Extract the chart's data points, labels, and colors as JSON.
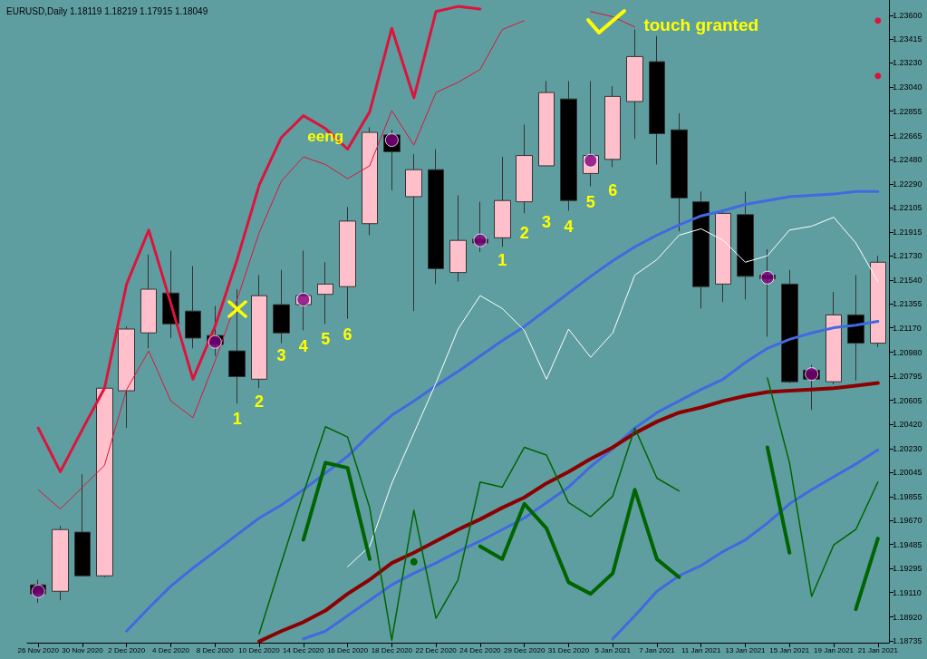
{
  "chart_data": {
    "type": "candlestick",
    "title": "EURUSD,Daily 1.18119 1.18219 1.17915 1.18049",
    "categories": [
      "26 Nov 2020",
      null,
      "30 Nov 2020",
      null,
      "2 Dec 2020",
      null,
      "4 Dec 2020",
      null,
      "8 Dec 2020",
      null,
      "10 Dec 2020",
      null,
      "14 Dec 2020",
      null,
      "16 Dec 2020",
      null,
      "18 Dec 2020",
      null,
      "22 Dec 2020",
      null,
      "24 Dec 2020",
      null,
      "29 Dec 2020",
      null,
      "31 Dec 2020",
      null,
      "5 Jan 2021",
      null,
      "7 Jan 2021",
      null,
      "11 Jan 2021",
      null,
      "13 Jan 2021",
      null,
      "15 Jan 2021",
      null,
      "19 Jan 2021",
      null,
      "21 Jan 2021"
    ],
    "ohlc": [
      [
        1.1917,
        1.1921,
        1.1903,
        1.191
      ],
      [
        1.1912,
        1.1963,
        1.1905,
        1.196
      ],
      [
        1.1958,
        1.2003,
        1.1924,
        1.1924
      ],
      [
        1.1924,
        1.207,
        1.1923,
        1.207
      ],
      [
        1.2068,
        1.2118,
        1.2039,
        1.2116
      ],
      [
        1.2113,
        1.2174,
        1.2101,
        1.2147
      ],
      [
        1.2144,
        1.2177,
        1.2109,
        1.212
      ],
      [
        1.213,
        1.2165,
        1.2101,
        1.2109
      ],
      [
        1.2111,
        1.2134,
        1.2095,
        1.2104
      ],
      [
        1.2099,
        1.2147,
        1.2058,
        1.2079
      ],
      [
        1.2077,
        1.2158,
        1.207,
        1.2142
      ],
      [
        1.2135,
        1.2162,
        1.2105,
        1.2113
      ],
      [
        1.2135,
        1.2177,
        1.2115,
        1.2142
      ],
      [
        1.2143,
        1.2168,
        1.212,
        1.2151
      ],
      [
        1.2149,
        1.2211,
        1.2124,
        1.22
      ],
      [
        1.2198,
        1.2273,
        1.2189,
        1.2269
      ],
      [
        1.2267,
        1.2271,
        1.2224,
        1.2254
      ],
      [
        1.2219,
        1.2252,
        1.213,
        1.224
      ],
      [
        1.224,
        1.2256,
        1.2151,
        1.2163
      ],
      [
        1.216,
        1.222,
        1.2153,
        1.2185
      ],
      [
        1.2186,
        1.2215,
        1.2176,
        1.2183
      ],
      [
        1.2187,
        1.225,
        1.218,
        1.2216
      ],
      [
        1.2215,
        1.2275,
        1.2206,
        1.2251
      ],
      [
        1.2243,
        1.2309,
        1.2243,
        1.23
      ],
      [
        1.2295,
        1.2309,
        1.2208,
        1.2216
      ],
      [
        1.2237,
        1.2309,
        1.2227,
        1.2251
      ],
      [
        1.2248,
        1.2305,
        1.2242,
        1.2297
      ],
      [
        1.2293,
        1.2349,
        1.2264,
        1.2328
      ],
      [
        1.2324,
        1.2344,
        1.2244,
        1.2268
      ],
      [
        1.2271,
        1.2284,
        1.2192,
        1.2218
      ],
      [
        1.2215,
        1.2223,
        1.2132,
        1.2149
      ],
      [
        1.2151,
        1.2209,
        1.2137,
        1.2206
      ],
      [
        1.2205,
        1.2223,
        1.2139,
        1.2157
      ],
      [
        1.2158,
        1.2178,
        1.211,
        1.2155
      ],
      [
        1.2151,
        1.2162,
        1.2074,
        1.2075
      ],
      [
        1.2084,
        1.2088,
        1.2053,
        1.2077
      ],
      [
        1.2075,
        1.2145,
        1.2073,
        1.2127
      ],
      [
        1.2127,
        1.2158,
        1.2076,
        1.2105
      ],
      [
        1.2105,
        1.2173,
        1.2102,
        1.2168
      ]
    ],
    "colors": [
      "#000000",
      "#ffc0cb",
      "#000000",
      "#ffc0cb",
      "#ffc0cb",
      "#ffc0cb",
      "#000000",
      "#000000",
      "#000000",
      "#000000",
      "#ffc0cb",
      "#000000",
      "#ffc0cb",
      "#ffc0cb",
      "#ffc0cb",
      "#ffc0cb",
      "#000000",
      "#ffc0cb",
      "#000000",
      "#ffc0cb",
      "#000000",
      "#ffc0cb",
      "#ffc0cb",
      "#ffc0cb",
      "#000000",
      "#ffc0cb",
      "#ffc0cb",
      "#ffc0cb",
      "#000000",
      "#000000",
      "#000000",
      "#ffc0cb",
      "#000000",
      "#000000",
      "#000000",
      "#000000",
      "#ffc0cb",
      "#000000",
      "#ffc0cb"
    ],
    "series": [
      {
        "type": "line",
        "color": "#dc143c",
        "values": [
          1.2039,
          1.2005,
          1.2038,
          1.207,
          1.2151,
          1.2193,
          1.2136,
          1.2077,
          1.2118,
          1.217,
          1.2228,
          1.2265,
          1.2282,
          1.2272,
          1.2256,
          1.2285,
          1.235,
          1.2296,
          1.2363,
          1.2367,
          1.2365,
          null,
          null,
          null,
          null,
          null,
          null,
          null,
          null,
          null,
          null,
          null,
          null,
          null,
          null,
          null,
          null,
          null,
          1.2356
        ]
      },
      {
        "type": "line",
        "color": "#dc143c",
        "values": [
          1.1991,
          1.1976,
          1.1993,
          1.201,
          1.2069,
          1.2099,
          1.206,
          1.2047,
          1.2091,
          1.2139,
          1.2191,
          1.2231,
          1.225,
          1.2244,
          1.2233,
          1.2243,
          1.2286,
          1.2259,
          1.23,
          1.2308,
          1.2318,
          1.2349,
          1.2356,
          null,
          null,
          null,
          null,
          null,
          null,
          null,
          null,
          null,
          null,
          null,
          null,
          null,
          null,
          null,
          1.2313
        ]
      },
      {
        "type": "line",
        "color": "#dc143c",
        "values": [
          null,
          null,
          null,
          null,
          null,
          null,
          null,
          null,
          null,
          null,
          null,
          null,
          null,
          null,
          null,
          null,
          null,
          null,
          null,
          null,
          null,
          null,
          null,
          null,
          null,
          1.2363,
          1.2359,
          1.2351,
          null,
          null,
          null,
          null,
          null,
          null,
          null,
          null,
          null,
          null,
          null
        ]
      },
      {
        "type": "line",
        "color": "#4169e1",
        "values": [
          null,
          null,
          null,
          null,
          1.1881,
          1.1899,
          1.1916,
          1.193,
          1.1943,
          1.1956,
          1.1969,
          1.1979,
          1.1991,
          1.2004,
          1.2017,
          1.2034,
          1.2049,
          1.206,
          1.2072,
          1.2083,
          1.2095,
          1.2107,
          1.2118,
          1.2131,
          1.2144,
          1.2157,
          1.2169,
          1.218,
          1.2189,
          1.2197,
          1.2204,
          1.2208,
          1.2213,
          1.2216,
          1.2219,
          1.222,
          1.2221,
          1.2223,
          1.2223
        ]
      },
      {
        "type": "line",
        "color": "#4169e1",
        "values": [
          null,
          null,
          null,
          null,
          null,
          null,
          null,
          null,
          null,
          null,
          null,
          null,
          1.1875,
          1.1881,
          1.1893,
          1.1905,
          1.1917,
          1.1926,
          1.1934,
          1.1943,
          1.1951,
          1.196,
          1.1969,
          1.1981,
          1.1993,
          1.2009,
          1.2023,
          1.2039,
          1.2051,
          1.206,
          1.2069,
          1.2077,
          1.209,
          1.2101,
          1.2108,
          1.2113,
          1.2117,
          1.2119,
          1.2122
        ]
      },
      {
        "type": "line",
        "color": "#4169e1",
        "values": [
          null,
          null,
          null,
          null,
          null,
          null,
          null,
          null,
          null,
          null,
          null,
          null,
          null,
          null,
          null,
          null,
          null,
          null,
          null,
          null,
          null,
          null,
          null,
          null,
          null,
          null,
          1.1875,
          1.1893,
          1.1912,
          1.1924,
          1.1932,
          1.1943,
          1.1952,
          1.1965,
          1.198,
          1.1991,
          1.2001,
          1.2011,
          1.2022
        ]
      },
      {
        "type": "line",
        "color": "#8b0000",
        "values": [
          null,
          null,
          null,
          null,
          null,
          null,
          null,
          null,
          null,
          null,
          1.1873,
          1.1881,
          1.1888,
          1.1897,
          1.191,
          1.1921,
          1.1934,
          1.1942,
          1.1951,
          1.196,
          1.1968,
          1.1977,
          1.1985,
          1.1996,
          1.2005,
          1.2015,
          1.2024,
          1.2035,
          1.2044,
          1.2051,
          1.2055,
          1.206,
          1.2064,
          1.2067,
          1.2068,
          1.2069,
          1.207,
          1.2072,
          1.2074
        ]
      },
      {
        "type": "line",
        "color": "#ffffff",
        "values": [
          null,
          null,
          null,
          null,
          null,
          null,
          null,
          null,
          null,
          null,
          null,
          null,
          null,
          null,
          1.1931,
          1.1947,
          1.1996,
          1.2035,
          1.2074,
          1.2116,
          1.2142,
          1.2132,
          1.2115,
          1.2077,
          1.2116,
          1.2094,
          1.2113,
          1.2158,
          1.217,
          1.2189,
          1.2194,
          1.2185,
          1.2168,
          1.2173,
          1.2193,
          1.2196,
          1.2203,
          1.2183,
          1.2153
        ]
      },
      {
        "type": "line",
        "color": "#006400",
        "values": [
          null,
          null,
          null,
          null,
          null,
          null,
          null,
          null,
          null,
          null,
          1.1879,
          1.1934,
          1.1988,
          1.204,
          1.2032,
          1.1977,
          1.1874,
          1.1975,
          1.1891,
          1.1921,
          1.1997,
          1.1993,
          1.2024,
          1.2018,
          1.1981,
          1.197,
          1.1986,
          1.2039,
          1.2,
          1.199,
          null,
          null,
          null,
          1.2078,
          1.2012,
          1.1908,
          1.1948,
          1.196,
          1.1997
        ]
      },
      {
        "type": "line",
        "color": "#006400",
        "values": [
          null,
          null,
          null,
          null,
          null,
          null,
          null,
          null,
          null,
          null,
          null,
          null,
          1.1952,
          1.2012,
          1.2008,
          1.1937,
          null,
          1.1935,
          null,
          null,
          1.1947,
          1.1937,
          1.198,
          1.1961,
          1.1919,
          1.191,
          1.1926,
          1.1991,
          1.1937,
          1.1923,
          null,
          null,
          null,
          1.2024,
          1.1942,
          null,
          null,
          1.1898,
          1.1953
        ]
      },
      {
        "type": "scatter",
        "color": "#800080",
        "marker": "circle",
        "values": [
          1.1912,
          null,
          null,
          null,
          null,
          null,
          null,
          null,
          1.2106,
          null,
          null,
          null,
          1.2139,
          null,
          null,
          null,
          1.2263,
          null,
          null,
          null,
          1.2185,
          null,
          null,
          null,
          null,
          1.2247,
          null,
          null,
          null,
          null,
          null,
          null,
          null,
          1.2156,
          null,
          1.2081,
          null,
          null,
          null
        ]
      }
    ],
    "ylim": [
      1.1872,
      1.2372
    ],
    "yticks": [
      {
        "value": 1.18735,
        "label": "1.18735"
      },
      {
        "value": 1.1892,
        "label": "1.18920"
      },
      {
        "value": 1.1911,
        "label": "1.19110"
      },
      {
        "value": 1.19295,
        "label": "1.19295"
      },
      {
        "value": 1.19485,
        "label": "1.19485"
      },
      {
        "value": 1.1967,
        "label": "1.19670"
      },
      {
        "value": 1.19855,
        "label": "1.19855"
      },
      {
        "value": 1.20045,
        "label": "1.20045"
      },
      {
        "value": 1.2023,
        "label": "1.20230"
      },
      {
        "value": 1.2042,
        "label": "1.20420"
      },
      {
        "value": 1.20605,
        "label": "1.20605"
      },
      {
        "value": 1.20795,
        "label": "1.20795"
      },
      {
        "value": 1.2098,
        "label": "1.20980"
      },
      {
        "value": 1.2117,
        "label": "1.21170"
      },
      {
        "value": 1.21355,
        "label": "1.21355"
      },
      {
        "value": 1.2154,
        "label": "1.21540"
      },
      {
        "value": 1.2173,
        "label": "1.21730"
      },
      {
        "value": 1.21915,
        "label": "1.21915"
      },
      {
        "value": 1.22105,
        "label": "1.22105"
      },
      {
        "value": 1.2229,
        "label": "1.22290"
      },
      {
        "value": 1.2248,
        "label": "1.22480"
      },
      {
        "value": 1.22665,
        "label": "1.22665"
      },
      {
        "value": 1.22855,
        "label": "1.22855"
      },
      {
        "value": 1.2304,
        "label": "1.23040"
      },
      {
        "value": 1.2323,
        "label": "1.23230"
      },
      {
        "value": 1.23415,
        "label": "1.23415"
      },
      {
        "value": 1.236,
        "label": "1.23600"
      }
    ],
    "grid": false,
    "annotations": [
      "eeng",
      "1",
      "2",
      "3",
      "4",
      "5",
      "6",
      "1",
      "2",
      "3",
      "4",
      "5",
      "6",
      "touch granted"
    ]
  }
}
